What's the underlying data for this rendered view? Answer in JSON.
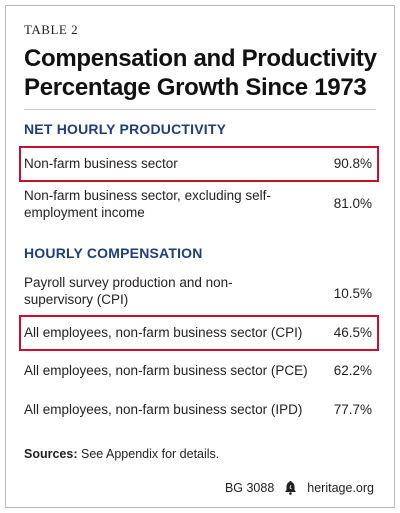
{
  "table_label": "TABLE 2",
  "title_line1": "Compensation and Productivity",
  "title_line2": "Percentage Growth Since 1973",
  "sections": {
    "productivity": {
      "heading": "NET HOURLY PRODUCTIVITY",
      "rows": [
        {
          "label": "Non-farm business sector",
          "value": "90.8%"
        },
        {
          "label": "Non-farm business sector, excluding self-employment income",
          "value": "81.0%"
        }
      ]
    },
    "compensation": {
      "heading": "HOURLY COMPENSATION",
      "rows": [
        {
          "label": "Payroll survey production and non-supervisory (CPI)",
          "value": "10.5%"
        },
        {
          "label": "All employees, non-farm business sector (CPI)",
          "value": "46.5%"
        },
        {
          "label": "All employees, non-farm business sector (PCE)",
          "value": "62.2%"
        },
        {
          "label": "All employees, non-farm business sector (IPD)",
          "value": "77.7%"
        }
      ]
    }
  },
  "sources": {
    "label": "Sources:",
    "text": "See Appendix for details."
  },
  "footer": {
    "report": "BG 3088",
    "site": "heritage.org",
    "logo_icon": "liberty-bell-icon"
  },
  "colors": {
    "accent_blue": "#1f3f7a",
    "highlight_red": "#c8102e"
  }
}
